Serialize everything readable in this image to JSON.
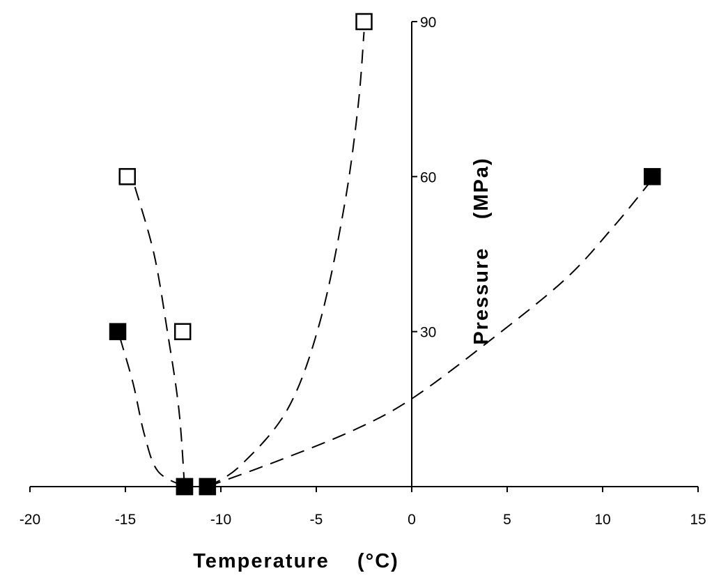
{
  "chart_data": {
    "type": "scatter",
    "xlabel": "Temperature    (°C)",
    "ylabel": "Pressure    (MPa)",
    "xlim": [
      -20,
      15
    ],
    "ylim": [
      0,
      90
    ],
    "x_ticks": [
      -20,
      -15,
      -10,
      -5,
      0,
      5,
      10,
      15
    ],
    "y_ticks": [
      30,
      60,
      90
    ],
    "grid": false,
    "series": [
      {
        "marker": "open-square",
        "points": [
          [
            -14.9,
            60
          ],
          [
            -12.0,
            30
          ],
          [
            -11.9,
            0
          ]
        ],
        "curve": [
          [
            -14.5,
            58
          ],
          [
            -13.5,
            45
          ],
          [
            -12.8,
            30
          ],
          [
            -12.2,
            15
          ],
          [
            -11.9,
            0
          ]
        ]
      },
      {
        "marker": "filled-square",
        "points": [
          [
            -15.4,
            30
          ],
          [
            -11.9,
            0
          ]
        ],
        "curve": [
          [
            -15.3,
            29
          ],
          [
            -14.6,
            20
          ],
          [
            -14.0,
            10
          ],
          [
            -13.3,
            3
          ],
          [
            -11.9,
            0
          ]
        ]
      },
      {
        "marker": "open-square",
        "points": [
          [
            -2.5,
            90
          ],
          [
            -10.7,
            0
          ]
        ],
        "curve": [
          [
            -10.7,
            0
          ],
          [
            -9.0,
            4
          ],
          [
            -6.5,
            15
          ],
          [
            -4.8,
            32
          ],
          [
            -3.5,
            55
          ],
          [
            -2.8,
            74
          ],
          [
            -2.5,
            88
          ]
        ]
      },
      {
        "marker": "filled-square",
        "points": [
          [
            12.6,
            60
          ],
          [
            -10.7,
            0
          ]
        ],
        "curve": [
          [
            -10.7,
            0
          ],
          [
            -7.0,
            5
          ],
          [
            -3.0,
            11
          ],
          [
            0,
            17
          ],
          [
            4.0,
            28
          ],
          [
            8.0,
            40
          ],
          [
            10.5,
            50
          ],
          [
            12.5,
            59
          ]
        ]
      }
    ]
  }
}
